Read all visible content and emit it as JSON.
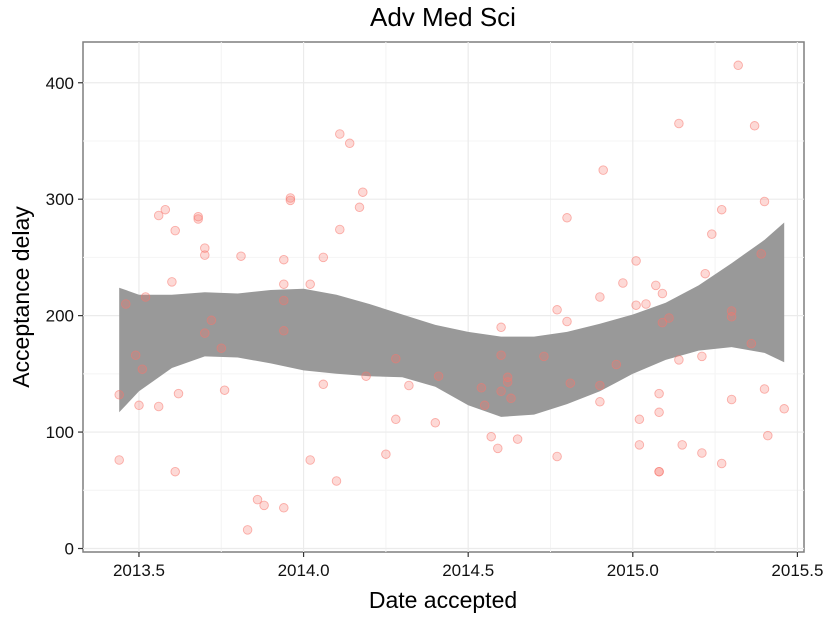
{
  "chart_data": {
    "type": "scatter",
    "title": "Adv Med Sci",
    "xlabel": "Date accepted",
    "ylabel": "Acceptance delay",
    "xlim": [
      2013.33,
      2015.52
    ],
    "ylim": [
      -3,
      435
    ],
    "x_ticks": [
      2013.5,
      2014.0,
      2014.5,
      2015.0,
      2015.5
    ],
    "x_tick_labels": [
      "2013.5",
      "2014.0",
      "2014.5",
      "2015.0",
      "2015.5"
    ],
    "y_ticks": [
      0,
      100,
      200,
      300,
      400
    ],
    "y_tick_labels": [
      "0",
      "100",
      "200",
      "300",
      "400"
    ],
    "grid": true,
    "point_color": "#f8766d",
    "band_color": "#999999",
    "points": [
      {
        "x": 2013.44,
        "y": 132
      },
      {
        "x": 2013.44,
        "y": 76
      },
      {
        "x": 2013.46,
        "y": 210
      },
      {
        "x": 2013.49,
        "y": 166
      },
      {
        "x": 2013.5,
        "y": 123
      },
      {
        "x": 2013.51,
        "y": 154
      },
      {
        "x": 2013.52,
        "y": 216
      },
      {
        "x": 2013.56,
        "y": 286
      },
      {
        "x": 2013.56,
        "y": 122
      },
      {
        "x": 2013.58,
        "y": 291
      },
      {
        "x": 2013.6,
        "y": 229
      },
      {
        "x": 2013.61,
        "y": 273
      },
      {
        "x": 2013.62,
        "y": 133
      },
      {
        "x": 2013.61,
        "y": 66
      },
      {
        "x": 2013.68,
        "y": 285
      },
      {
        "x": 2013.68,
        "y": 283
      },
      {
        "x": 2013.7,
        "y": 258
      },
      {
        "x": 2013.7,
        "y": 252
      },
      {
        "x": 2013.7,
        "y": 185
      },
      {
        "x": 2013.72,
        "y": 196
      },
      {
        "x": 2013.75,
        "y": 172
      },
      {
        "x": 2013.76,
        "y": 136
      },
      {
        "x": 2013.81,
        "y": 251
      },
      {
        "x": 2013.83,
        "y": 16
      },
      {
        "x": 2013.86,
        "y": 42
      },
      {
        "x": 2013.88,
        "y": 37
      },
      {
        "x": 2013.94,
        "y": 248
      },
      {
        "x": 2013.94,
        "y": 227
      },
      {
        "x": 2013.94,
        "y": 213
      },
      {
        "x": 2013.94,
        "y": 187
      },
      {
        "x": 2013.94,
        "y": 35
      },
      {
        "x": 2013.96,
        "y": 299
      },
      {
        "x": 2013.96,
        "y": 301
      },
      {
        "x": 2014.02,
        "y": 227
      },
      {
        "x": 2014.02,
        "y": 76
      },
      {
        "x": 2014.06,
        "y": 250
      },
      {
        "x": 2014.06,
        "y": 141
      },
      {
        "x": 2014.11,
        "y": 356
      },
      {
        "x": 2014.11,
        "y": 274
      },
      {
        "x": 2014.1,
        "y": 58
      },
      {
        "x": 2014.14,
        "y": 348
      },
      {
        "x": 2014.17,
        "y": 293
      },
      {
        "x": 2014.18,
        "y": 306
      },
      {
        "x": 2014.19,
        "y": 148
      },
      {
        "x": 2014.25,
        "y": 81
      },
      {
        "x": 2014.28,
        "y": 163
      },
      {
        "x": 2014.28,
        "y": 111
      },
      {
        "x": 2014.32,
        "y": 140
      },
      {
        "x": 2014.4,
        "y": 108
      },
      {
        "x": 2014.41,
        "y": 148
      },
      {
        "x": 2014.54,
        "y": 138
      },
      {
        "x": 2014.55,
        "y": 123
      },
      {
        "x": 2014.57,
        "y": 96
      },
      {
        "x": 2014.6,
        "y": 190
      },
      {
        "x": 2014.6,
        "y": 166
      },
      {
        "x": 2014.6,
        "y": 135
      },
      {
        "x": 2014.59,
        "y": 86
      },
      {
        "x": 2014.62,
        "y": 143
      },
      {
        "x": 2014.62,
        "y": 147
      },
      {
        "x": 2014.63,
        "y": 129
      },
      {
        "x": 2014.65,
        "y": 94
      },
      {
        "x": 2014.73,
        "y": 165
      },
      {
        "x": 2014.77,
        "y": 205
      },
      {
        "x": 2014.77,
        "y": 79
      },
      {
        "x": 2014.8,
        "y": 284
      },
      {
        "x": 2014.8,
        "y": 195
      },
      {
        "x": 2014.81,
        "y": 142
      },
      {
        "x": 2014.9,
        "y": 216
      },
      {
        "x": 2014.9,
        "y": 140
      },
      {
        "x": 2014.9,
        "y": 126
      },
      {
        "x": 2014.91,
        "y": 325
      },
      {
        "x": 2014.95,
        "y": 158
      },
      {
        "x": 2014.97,
        "y": 228
      },
      {
        "x": 2015.01,
        "y": 247
      },
      {
        "x": 2015.01,
        "y": 209
      },
      {
        "x": 2015.02,
        "y": 111
      },
      {
        "x": 2015.02,
        "y": 89
      },
      {
        "x": 2015.04,
        "y": 210
      },
      {
        "x": 2015.07,
        "y": 226
      },
      {
        "x": 2015.08,
        "y": 133
      },
      {
        "x": 2015.08,
        "y": 117
      },
      {
        "x": 2015.08,
        "y": 66
      },
      {
        "x": 2015.08,
        "y": 66
      },
      {
        "x": 2015.09,
        "y": 219
      },
      {
        "x": 2015.09,
        "y": 194
      },
      {
        "x": 2015.11,
        "y": 198
      },
      {
        "x": 2015.14,
        "y": 365
      },
      {
        "x": 2015.14,
        "y": 162
      },
      {
        "x": 2015.15,
        "y": 89
      },
      {
        "x": 2015.21,
        "y": 165
      },
      {
        "x": 2015.21,
        "y": 82
      },
      {
        "x": 2015.22,
        "y": 236
      },
      {
        "x": 2015.24,
        "y": 270
      },
      {
        "x": 2015.27,
        "y": 291
      },
      {
        "x": 2015.27,
        "y": 73
      },
      {
        "x": 2015.3,
        "y": 204
      },
      {
        "x": 2015.3,
        "y": 199
      },
      {
        "x": 2015.3,
        "y": 128
      },
      {
        "x": 2015.32,
        "y": 415
      },
      {
        "x": 2015.36,
        "y": 176
      },
      {
        "x": 2015.37,
        "y": 363
      },
      {
        "x": 2015.39,
        "y": 253
      },
      {
        "x": 2015.4,
        "y": 298
      },
      {
        "x": 2015.4,
        "y": 137
      },
      {
        "x": 2015.41,
        "y": 97
      },
      {
        "x": 2015.46,
        "y": 120
      }
    ],
    "confidence_band": {
      "x": [
        2013.44,
        2013.5,
        2013.6,
        2013.7,
        2013.8,
        2013.9,
        2014.0,
        2014.1,
        2014.2,
        2014.3,
        2014.4,
        2014.5,
        2014.6,
        2014.7,
        2014.8,
        2014.9,
        2015.0,
        2015.1,
        2015.2,
        2015.3,
        2015.4,
        2015.46
      ],
      "upper": [
        224,
        218,
        218,
        220,
        219,
        222,
        223,
        218,
        210,
        201,
        192,
        186,
        182,
        182,
        186,
        193,
        201,
        211,
        226,
        245,
        265,
        280
      ],
      "lower": [
        117,
        135,
        155,
        165,
        164,
        159,
        153,
        150,
        148,
        147,
        139,
        123,
        113,
        115,
        124,
        135,
        150,
        162,
        170,
        173,
        168,
        160
      ]
    }
  }
}
